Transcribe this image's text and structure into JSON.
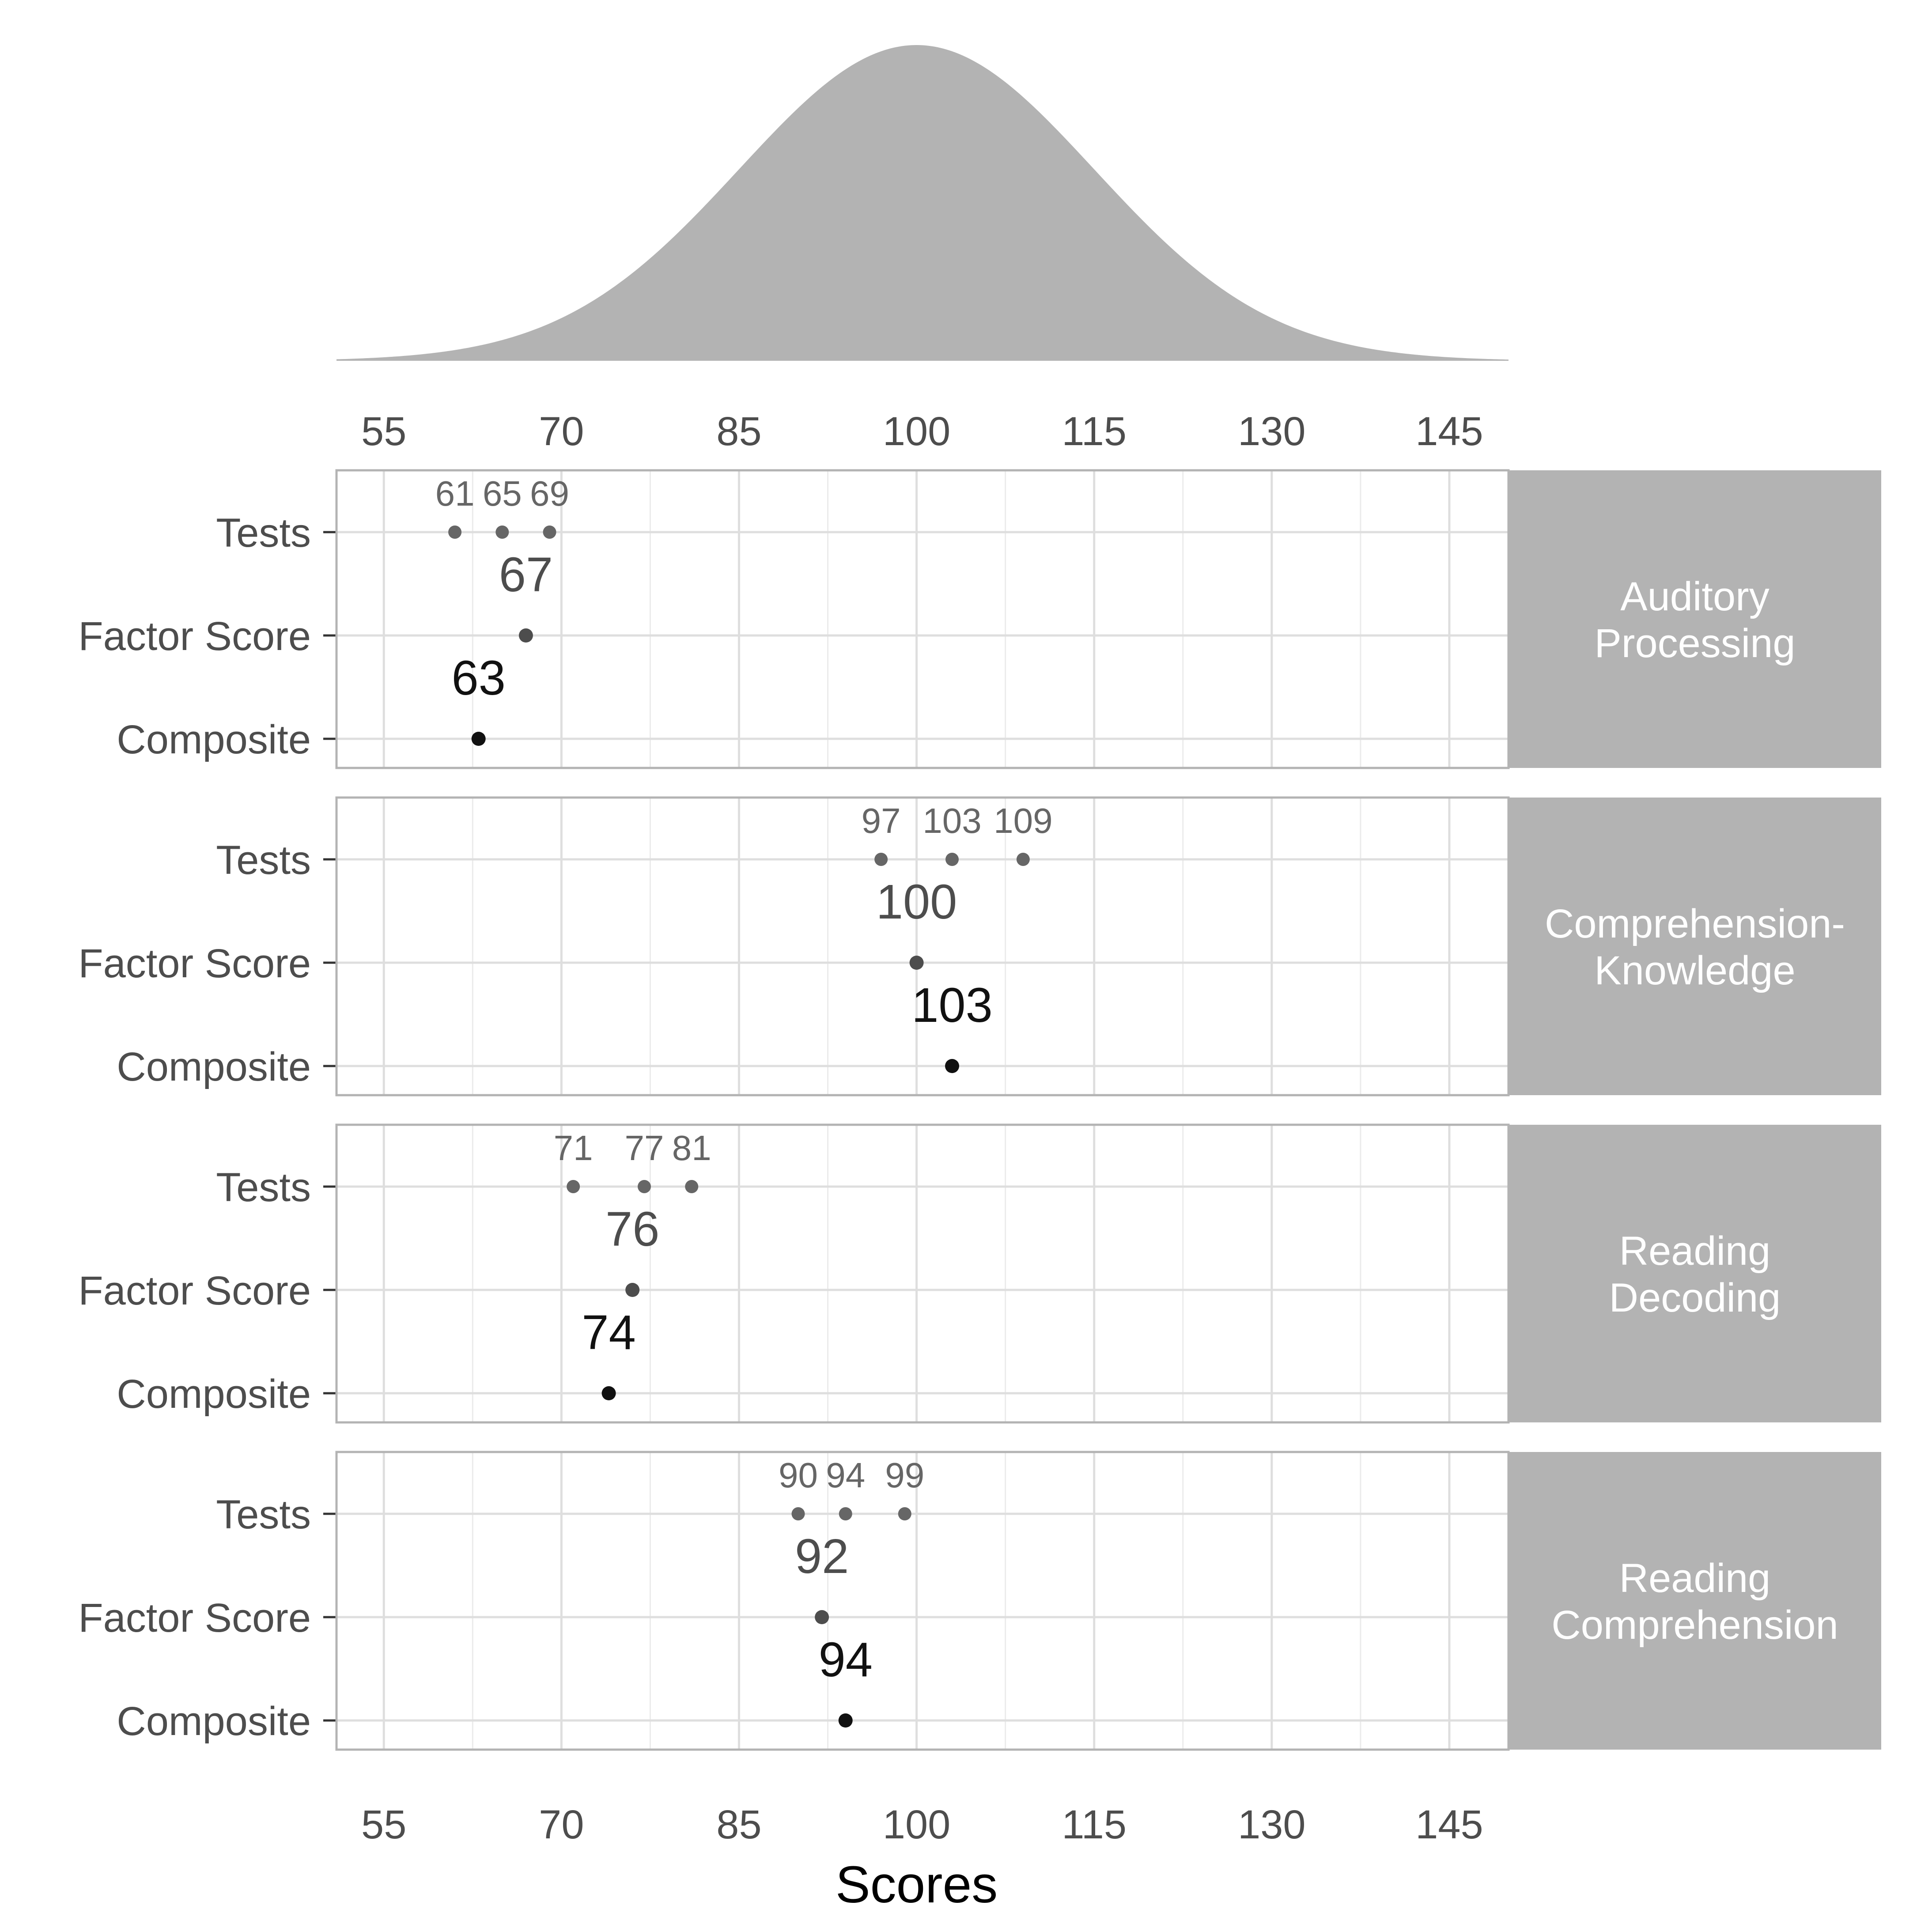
{
  "chart_data": {
    "type": "scatter",
    "xlabel": "Scores",
    "xlim": [
      51,
      150
    ],
    "x_ticks": [
      55,
      70,
      85,
      100,
      115,
      130,
      145
    ],
    "categories": [
      "Tests",
      "Factor Score",
      "Composite"
    ],
    "distribution": {
      "type": "normal",
      "mean": 100,
      "sd": 15
    },
    "colors": {
      "density": "#b3b3b3",
      "strip": "#b3b3b3",
      "tests": "#666666",
      "factor": "#4d4d4d",
      "composite": "#111111",
      "grid": "#dedede"
    },
    "panels": [
      {
        "name_lines": [
          "Auditory",
          "Processing"
        ],
        "tests": [
          61,
          65,
          69
        ],
        "factor": 67,
        "composite": 63,
        "test_labels": [
          "61",
          "65",
          "69"
        ],
        "factor_label": "67",
        "composite_label": "63"
      },
      {
        "name_lines": [
          "Comprehension-",
          "Knowledge"
        ],
        "tests": [
          97,
          103,
          109
        ],
        "factor": 100,
        "composite": 103,
        "test_labels": [
          "97",
          "103",
          "109"
        ],
        "factor_label": "100",
        "composite_label": "103"
      },
      {
        "name_lines": [
          "Reading",
          "Decoding"
        ],
        "tests": [
          71,
          77,
          81
        ],
        "factor": 76,
        "composite": 74,
        "test_labels": [
          "71",
          "77",
          "81"
        ],
        "factor_label": "76",
        "composite_label": "74"
      },
      {
        "name_lines": [
          "Reading",
          "Comprehension"
        ],
        "tests": [
          90,
          94,
          99
        ],
        "factor": 92,
        "composite": 94,
        "test_labels": [
          "90",
          "94",
          "99"
        ],
        "factor_label": "92",
        "composite_label": "94"
      }
    ]
  }
}
